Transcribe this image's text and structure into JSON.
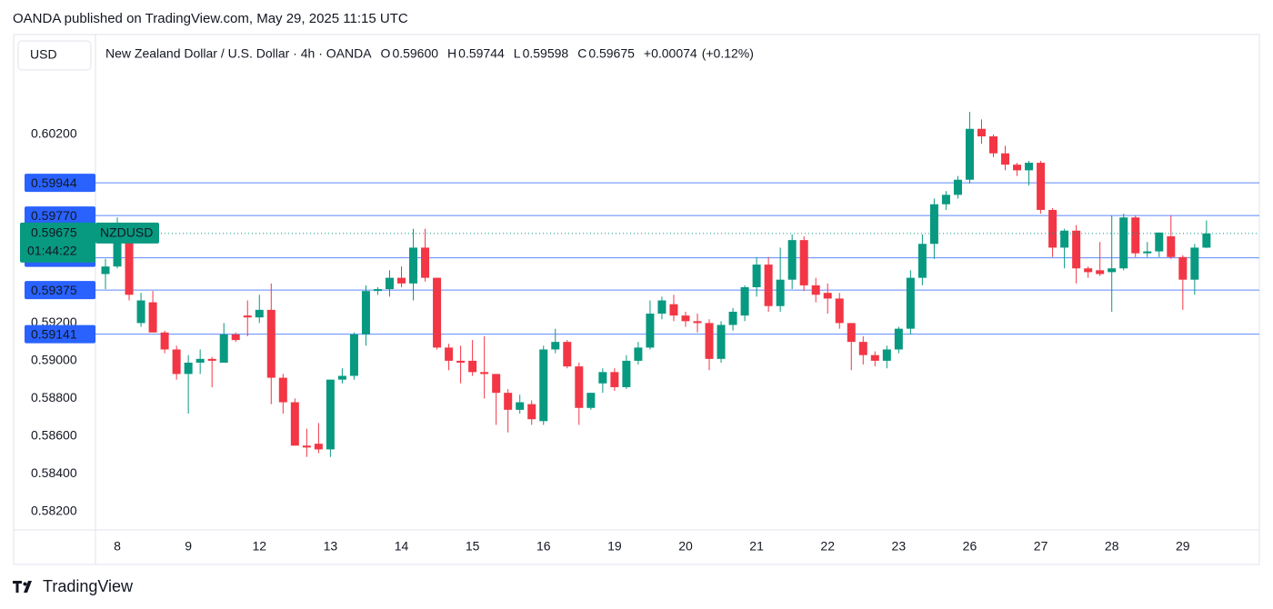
{
  "publisher": "OANDA published on TradingView.com, May 29, 2025 11:15 UTC",
  "currency": "USD",
  "brand": "TradingView",
  "header": {
    "title": "New Zealand Dollar / U.S. Dollar · 4h · OANDA",
    "ohlc": [
      {
        "key": "O",
        "value": 0.596,
        "label": "0.59600"
      },
      {
        "key": "H",
        "value": 0.59744
      },
      {
        "key": "L",
        "value": 0.59598
      },
      {
        "key": "C",
        "value": 0.59675
      }
    ],
    "change": {
      "value": 0.00074,
      "label": "+0.00074"
    },
    "change_percent": {
      "value": 0.12,
      "label": "(+0.12%)"
    }
  },
  "chart_data": {
    "type": "candlestick",
    "symbol": "NZDUSD",
    "up_color": "#089981",
    "down_color": "#f23645",
    "level_color": "#2962ff",
    "grid": false,
    "ylim": [
      0.58103,
      0.6073
    ],
    "yticks": [
      {
        "value": 0.602,
        "label": "0.60200"
      },
      {
        "value": 0.592,
        "label": "0.59200"
      },
      {
        "value": 0.59,
        "label": "0.59000"
      },
      {
        "value": 0.588,
        "label": "0.58800"
      },
      {
        "value": 0.586,
        "label": "0.58600"
      },
      {
        "value": 0.584,
        "label": "0.58400"
      },
      {
        "value": 0.582,
        "label": "0.58200"
      }
    ],
    "price_lines": [
      0.59944,
      {
        "value": 0.5977,
        "label": "0.59770"
      },
      0.59546,
      0.59375,
      0.59141
    ],
    "current_price": 0.59675,
    "countdown": "01:44:22",
    "categories": [
      null,
      "8",
      null,
      null,
      null,
      null,
      null,
      "9",
      null,
      null,
      null,
      null,
      null,
      "12",
      null,
      null,
      null,
      null,
      null,
      "13",
      null,
      null,
      null,
      null,
      null,
      "14",
      null,
      null,
      null,
      null,
      null,
      "15",
      null,
      null,
      null,
      null,
      null,
      "16",
      null,
      null,
      null,
      null,
      null,
      "19",
      null,
      null,
      null,
      null,
      null,
      "20",
      null,
      null,
      null,
      null,
      null,
      "21",
      null,
      null,
      null,
      null,
      null,
      "22",
      null,
      null,
      null,
      null,
      null,
      "23",
      null,
      null,
      null,
      null,
      null,
      "26",
      null,
      null,
      null,
      null,
      null,
      "27",
      null,
      null,
      null,
      null,
      null,
      "28",
      null,
      null,
      null,
      null,
      null,
      "29",
      null,
      null
    ],
    "open": [
      0.5946,
      0.595,
      0.5964,
      0.592,
      0.5931,
      0.5915,
      0.5906,
      0.5893,
      0.5899,
      0.5901,
      0.5899,
      0.5914,
      0.5924,
      0.5923,
      0.5927,
      0.5891,
      0.5878,
      0.5855,
      0.5856,
      0.5853,
      0.589,
      0.5892,
      0.5914,
      0.5937,
      0.5938,
      0.5944,
      0.5941,
      0.596,
      0.5944,
      0.5907,
      0.59,
      0.59,
      0.5894,
      0.5893,
      0.5883,
      0.5874,
      0.5877,
      0.5868,
      0.5906,
      0.591,
      0.5897,
      0.5875,
      0.5888,
      0.5894,
      0.5886,
      0.59,
      0.5907,
      0.5925,
      0.593,
      0.5924,
      0.5921,
      0.592,
      0.5901,
      0.5919,
      0.5924,
      0.5939,
      0.5951,
      0.5929,
      0.5943,
      0.5964,
      0.594,
      0.5936,
      0.5933,
      0.592,
      0.591,
      0.5903,
      0.59,
      0.5906,
      0.5917,
      0.5944,
      0.5962,
      0.5983,
      0.5988,
      0.5996,
      0.6023,
      0.6019,
      0.601,
      0.6004,
      0.6001,
      0.6005,
      0.598,
      0.596,
      0.5969,
      0.5949,
      0.5948,
      0.5947,
      0.5949,
      0.5976,
      0.5957,
      0.5958,
      0.5966,
      0.5955,
      0.5943,
      0.596
    ],
    "high": [
      0.5954,
      0.5976,
      0.5967,
      0.5936,
      0.5937,
      0.5916,
      0.5908,
      0.5903,
      0.5906,
      0.5902,
      0.592,
      0.5915,
      0.5932,
      0.5935,
      0.5941,
      0.5893,
      0.588,
      0.5864,
      0.5867,
      0.589,
      0.5896,
      0.5915,
      0.594,
      0.5939,
      0.5948,
      0.595,
      0.597,
      0.597,
      0.5944,
      0.5909,
      0.5908,
      0.5911,
      0.5913,
      0.5893,
      0.5885,
      0.5882,
      0.5879,
      0.5908,
      0.5917,
      0.5911,
      0.5899,
      0.5883,
      0.5896,
      0.5896,
      0.5903,
      0.591,
      0.5932,
      0.5934,
      0.5935,
      0.5926,
      0.5925,
      0.5922,
      0.5921,
      0.5928,
      0.594,
      0.5955,
      0.5955,
      0.596,
      0.5967,
      0.5966,
      0.5944,
      0.5941,
      0.5936,
      0.592,
      0.5913,
      0.5905,
      0.5908,
      0.5918,
      0.5948,
      0.5967,
      0.5986,
      0.599,
      0.5998,
      0.6032,
      0.6028,
      0.602,
      0.6014,
      0.6005,
      0.6006,
      0.6006,
      0.5981,
      0.597,
      0.5972,
      0.595,
      0.5963,
      0.5977,
      0.5978,
      0.5977,
      0.5963,
      0.5968,
      0.5977,
      0.5956,
      0.5962,
      0.59744
    ],
    "low": [
      0.5938,
      0.5949,
      0.5932,
      0.5918,
      0.5915,
      0.5904,
      0.589,
      0.5872,
      0.5893,
      0.5886,
      0.5899,
      0.591,
      0.5913,
      0.592,
      0.5877,
      0.5872,
      0.5855,
      0.5849,
      0.5851,
      0.5849,
      0.5888,
      0.589,
      0.5908,
      0.5935,
      0.5934,
      0.5939,
      0.5932,
      0.5942,
      0.5906,
      0.5895,
      0.5888,
      0.5892,
      0.588,
      0.5866,
      0.5862,
      0.5872,
      0.5866,
      0.5866,
      0.5904,
      0.5896,
      0.5866,
      0.5874,
      0.5883,
      0.5884,
      0.5885,
      0.5898,
      0.5906,
      0.5922,
      0.5921,
      0.5918,
      0.5915,
      0.5895,
      0.5899,
      0.5916,
      0.5921,
      0.5934,
      0.5926,
      0.5926,
      0.5938,
      0.5937,
      0.5931,
      0.5925,
      0.5917,
      0.5895,
      0.5898,
      0.5897,
      0.5896,
      0.5904,
      0.5914,
      0.594,
      0.5954,
      0.598,
      0.5986,
      0.5994,
      0.6015,
      0.6008,
      0.6001,
      0.5998,
      0.5993,
      0.5978,
      0.5955,
      0.5949,
      0.5941,
      0.5944,
      0.5945,
      0.5926,
      0.5948,
      0.5955,
      0.5955,
      0.5955,
      0.5954,
      0.5927,
      0.5935,
      0.59598
    ],
    "close": [
      0.595,
      0.5968,
      0.5935,
      0.5932,
      0.5915,
      0.5906,
      0.5893,
      0.5899,
      0.5901,
      0.59,
      0.5914,
      0.5911,
      0.5923,
      0.5927,
      0.5891,
      0.5878,
      0.5855,
      0.5854,
      0.5853,
      0.589,
      0.5892,
      0.5914,
      0.5937,
      0.5938,
      0.5944,
      0.5941,
      0.596,
      0.5944,
      0.5907,
      0.59,
      0.5899,
      0.5894,
      0.5893,
      0.5883,
      0.5874,
      0.5878,
      0.5869,
      0.5906,
      0.591,
      0.5897,
      0.5875,
      0.5883,
      0.5894,
      0.5886,
      0.59,
      0.5907,
      0.5925,
      0.5932,
      0.5924,
      0.5921,
      0.592,
      0.5901,
      0.5919,
      0.5926,
      0.5939,
      0.5951,
      0.5929,
      0.5943,
      0.5964,
      0.594,
      0.5935,
      0.5933,
      0.592,
      0.591,
      0.5903,
      0.59,
      0.5906,
      0.5917,
      0.5944,
      0.5962,
      0.5983,
      0.5988,
      0.5996,
      0.6023,
      0.6019,
      0.601,
      0.6004,
      0.6001,
      0.6005,
      0.598,
      0.596,
      0.5969,
      0.5949,
      0.5947,
      0.5946,
      0.5949,
      0.5976,
      0.5957,
      0.5958,
      0.5968,
      0.5955,
      0.5943,
      0.596,
      0.59675
    ]
  }
}
